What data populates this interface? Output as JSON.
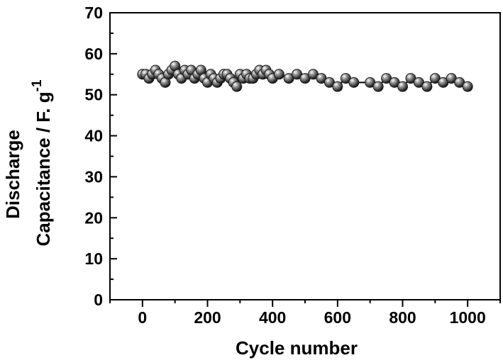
{
  "chart_data": {
    "type": "scatter",
    "title": "",
    "xlabel": "Cycle number",
    "ylabel_line1": "Discharge",
    "ylabel_line2": "Capacitance / F. g",
    "ylabel_superscript": "-1",
    "xlim": [
      -100,
      1100
    ],
    "ylim": [
      0,
      70
    ],
    "xticks": [
      0,
      200,
      400,
      600,
      800,
      1000
    ],
    "yticks": [
      0,
      10,
      20,
      30,
      40,
      50,
      60,
      70
    ],
    "grid": false,
    "legend": "none",
    "marker_color": "#1a1a1a",
    "line_color": "#000000",
    "series": [
      {
        "x": [
          0,
          10,
          20,
          30,
          40,
          50,
          60,
          70,
          80,
          90,
          100,
          110,
          120,
          130,
          140,
          150,
          160,
          170,
          180,
          190,
          200,
          210,
          220,
          230,
          240,
          250,
          260,
          270,
          280,
          290,
          300,
          310,
          320,
          330,
          340,
          350,
          360,
          370,
          380,
          390,
          400,
          420,
          450,
          475,
          500,
          525,
          550,
          575,
          600,
          625,
          650,
          700,
          725,
          750,
          775,
          800,
          825,
          850,
          875,
          900,
          925,
          950,
          975,
          1000
        ],
        "y": [
          55,
          55,
          54,
          55,
          56,
          55,
          54,
          53,
          55,
          56,
          57,
          55,
          54,
          56,
          55,
          56,
          54,
          55,
          56,
          54,
          53,
          55,
          54,
          53,
          54,
          55,
          55,
          54,
          53,
          52,
          55,
          54,
          55,
          54,
          54,
          55,
          56,
          55,
          56,
          55,
          54,
          55,
          54,
          55,
          54,
          55,
          54,
          53,
          52,
          54,
          53,
          53,
          52,
          54,
          53,
          52,
          54,
          53,
          52,
          54,
          53,
          54,
          53,
          52
        ]
      }
    ]
  }
}
